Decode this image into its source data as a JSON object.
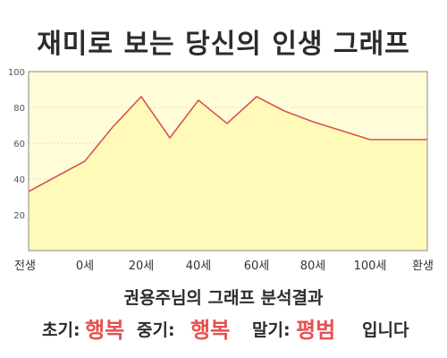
{
  "title": "재미로 보는 당신의 인생 그래프",
  "colors": {
    "plot_bg": "#fffdd8",
    "area_fill": "#fffab8",
    "line": "#d9534f",
    "grid": "#dddddd",
    "highlight": "#e8504f"
  },
  "chart_data": {
    "type": "area",
    "x": [
      "전생",
      "0세",
      "10세",
      "20세",
      "30세",
      "40세",
      "50세",
      "60세",
      "70세",
      "80세",
      "90세",
      "100세",
      "환생"
    ],
    "xticks": [
      "전생",
      "0세",
      "20세",
      "40세",
      "60세",
      "80세",
      "100세",
      "환생"
    ],
    "values": [
      33,
      50,
      69,
      86,
      63,
      84,
      71,
      86,
      78,
      72,
      67,
      62,
      62
    ],
    "ylim": [
      0,
      100
    ],
    "yticks": [
      20,
      40,
      60,
      80,
      100
    ],
    "grid": true
  },
  "result": {
    "heading": "권용주님의 그래프 분석결과",
    "early_label": "초기:",
    "early_value": "행복",
    "middle_label": "중기:",
    "middle_value": "행복",
    "late_label": "말기:",
    "late_value": "평범",
    "ending": "입니다"
  }
}
